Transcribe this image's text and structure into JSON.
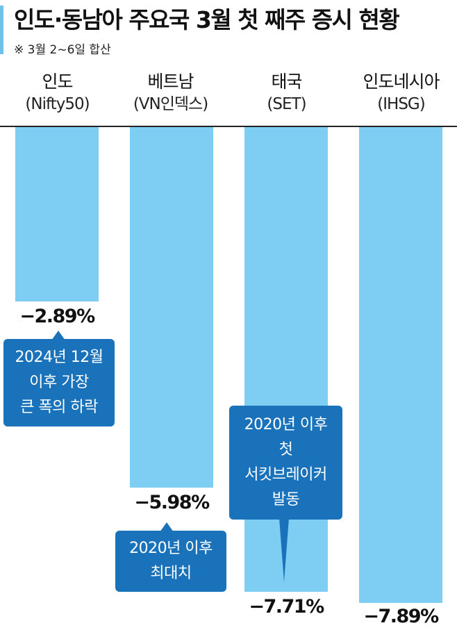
{
  "header": {
    "title": "인도·동남아 주요국 3월 첫 째주 증시 현황",
    "subtitle": "※ 3월 2~6일 합산"
  },
  "chart_data": {
    "type": "bar",
    "categories": [
      "인도",
      "베트남",
      "태국",
      "인도네시아"
    ],
    "indices": [
      "(Nifty50)",
      "(VN인덱스)",
      "(SET)",
      "(IHSG)"
    ],
    "values": [
      -2.89,
      -5.98,
      -7.71,
      -7.89
    ],
    "value_labels": [
      "−2.89%",
      "−5.98%",
      "−7.71%",
      "−7.89%"
    ],
    "annotations": [
      [
        "2024년 12월",
        "이후 가장",
        "큰 폭의 하락"
      ],
      [
        "2020년 이후",
        "최대치"
      ],
      [
        "2020년 이후",
        "첫",
        "서킷브레이커",
        "발동"
      ]
    ],
    "colors": {
      "bar": "#7ecdf2",
      "note": "#1a73ba",
      "accent": "#6fc0ea"
    }
  }
}
